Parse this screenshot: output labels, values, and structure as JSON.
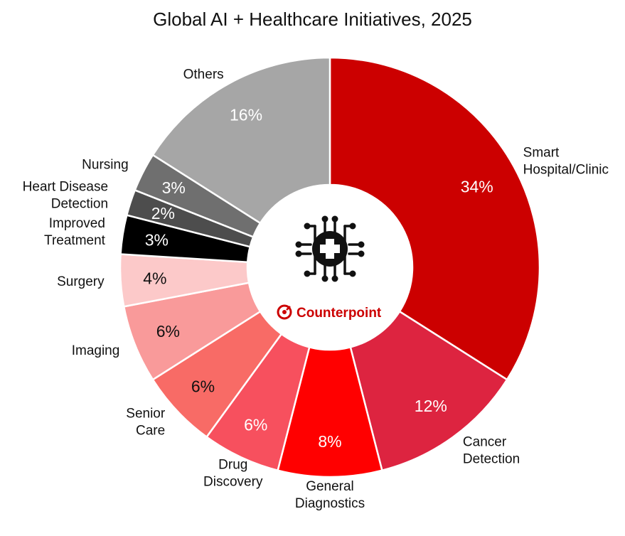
{
  "chart_data": {
    "type": "pie",
    "title": "Global AI + Healthcare Initiatives, 2025",
    "donut": true,
    "series": [
      {
        "label": "Smart Hospital/Clinic",
        "value": 34,
        "value_label": "34%",
        "color": "#cc0000",
        "text_color": "#ffffff"
      },
      {
        "label": "Cancer Detection",
        "value": 12,
        "value_label": "12%",
        "color": "#dd2440",
        "text_color": "#ffffff"
      },
      {
        "label": "General Diagnostics",
        "value": 8,
        "value_label": "8%",
        "color": "#ff0000",
        "text_color": "#ffffff"
      },
      {
        "label": "Drug Discovery",
        "value": 6,
        "value_label": "6%",
        "color": "#f7505e",
        "text_color": "#ffffff"
      },
      {
        "label": "Senior Care",
        "value": 6,
        "value_label": "6%",
        "color": "#f86b66",
        "text_color": "#111111"
      },
      {
        "label": "Imaging",
        "value": 6,
        "value_label": "6%",
        "color": "#f99a9a",
        "text_color": "#111111"
      },
      {
        "label": "Surgery",
        "value": 4,
        "value_label": "4%",
        "color": "#fcc9c9",
        "text_color": "#111111"
      },
      {
        "label": "Improved Treatment",
        "value": 3,
        "value_label": "3%",
        "color": "#000000",
        "text_color": "#ffffff"
      },
      {
        "label": "Heart Disease Detection",
        "value": 2,
        "value_label": "2%",
        "color": "#4d4d4d",
        "text_color": "#ffffff"
      },
      {
        "label": "Nursing",
        "value": 3,
        "value_label": "3%",
        "color": "#6f6f6f",
        "text_color": "#ffffff"
      },
      {
        "label": "Others",
        "value": 16,
        "value_label": "16%",
        "color": "#a6a6a6",
        "text_color": "#ffffff"
      }
    ]
  },
  "center": {
    "brand": "Counterpoint",
    "brand_color": "#cc0000",
    "icon": "medical-chip-icon"
  }
}
